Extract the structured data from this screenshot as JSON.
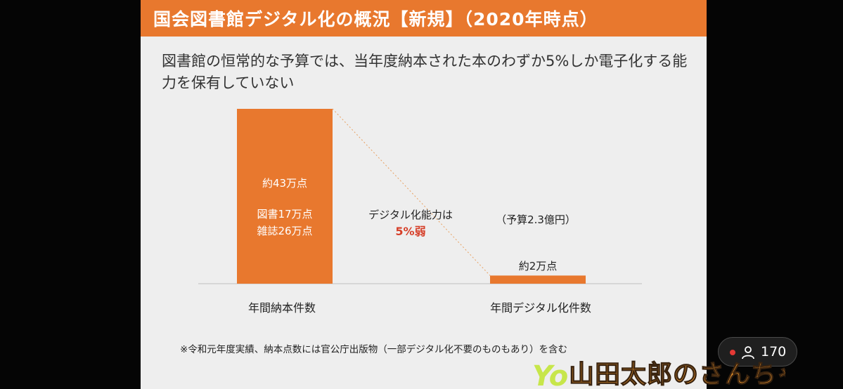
{
  "slide": {
    "title": "国会図書館デジタル化の概況【新規】（2020年時点）",
    "subtitle": "図書館の恒常的な予算では、当年度納本された本のわずか5%しか電子化する能力を保有していない",
    "footnote": "※令和元年度実績、納本点数には官公庁出版物（一部デジタル化不要のものもあり）を含む"
  },
  "chart_data": {
    "type": "bar",
    "categories": [
      "年間納本件数",
      "年間デジタル化件数"
    ],
    "values": [
      43,
      2
    ],
    "unit": "万点",
    "ylim": [
      0,
      43
    ],
    "grid": false,
    "bar_labels": [
      [
        "約43万点",
        "",
        "図書17万点",
        "雑誌26万点"
      ],
      [
        "約2万点"
      ]
    ],
    "annotations": {
      "budget": "（予算2.3億円）",
      "capacity_label": "デジタル化能力は",
      "capacity_value": "5%弱"
    },
    "colors": {
      "bar": "#e8782e",
      "accent": "#d6402a",
      "baseline": "#cfcfcf",
      "connector": "#e8a060"
    }
  },
  "overlay": {
    "viewer_count": "170",
    "person_icon": "person-icon",
    "live_indicator_color": "#e53935",
    "logo_text": "山田太郎のさんちゃんねる"
  }
}
